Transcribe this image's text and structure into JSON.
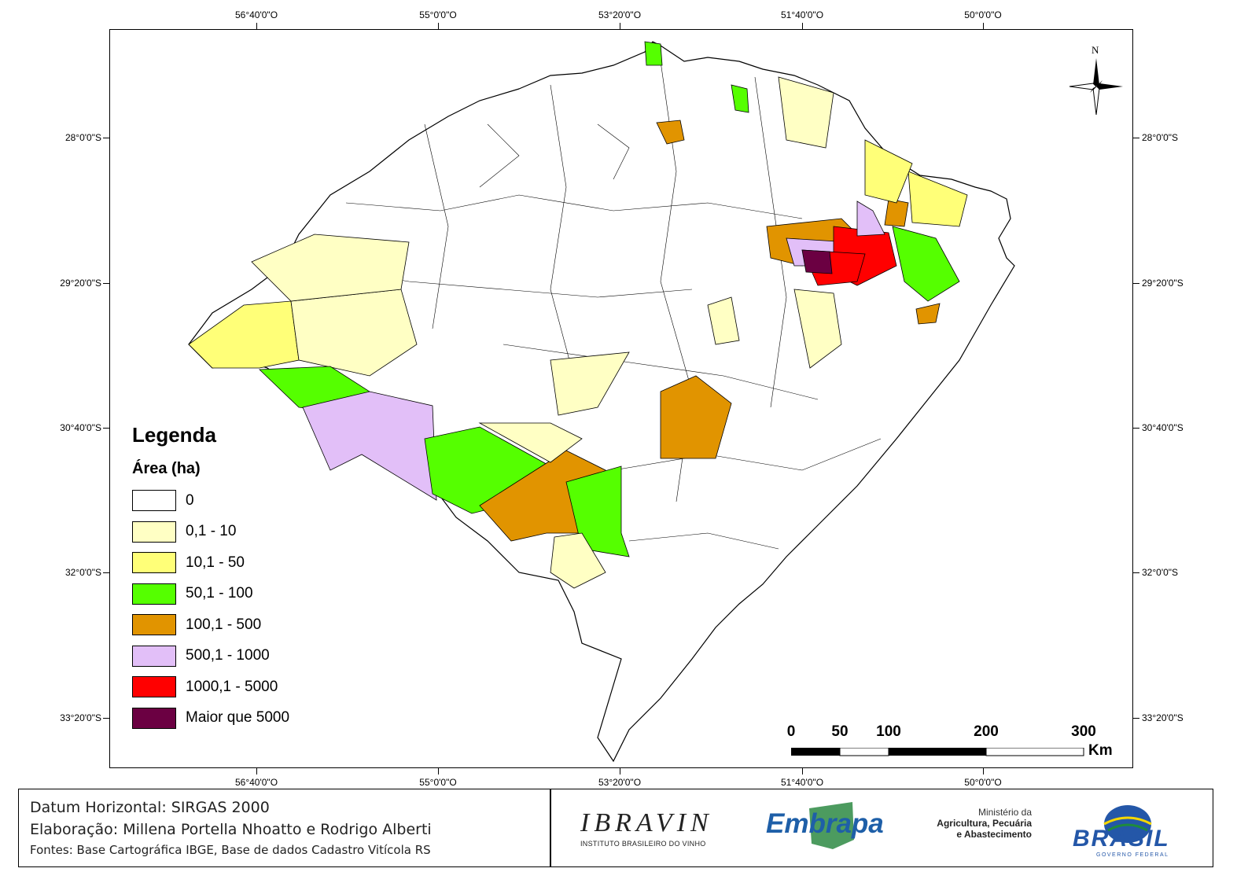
{
  "map": {
    "top_ticks": [
      "56°40'0\"O",
      "55°0'0\"O",
      "53°20'0\"O",
      "51°40'0\"O",
      "50°0'0\"O"
    ],
    "bottom_ticks": [
      "56°40'0\"O",
      "55°0'0\"O",
      "53°20'0\"O",
      "51°40'0\"O",
      "50°0'0\"O"
    ],
    "left_ticks": [
      "28°0'0\"S",
      "29°20'0\"S",
      "30°40'0\"S",
      "32°0'0\"S",
      "33°20'0\"S"
    ],
    "right_ticks": [
      "28°0'0\"S",
      "29°20'0\"S",
      "30°40'0\"S",
      "32°0'0\"S",
      "33°20'0\"S"
    ],
    "north_label": "N"
  },
  "legend": {
    "title": "Legenda",
    "subtitle": "Área (ha)",
    "items": [
      {
        "label": "0",
        "color": "#ffffff"
      },
      {
        "label": "0,1 - 10",
        "color": "#ffffc4"
      },
      {
        "label": "10,1 - 50",
        "color": "#ffff78"
      },
      {
        "label": "50,1 - 100",
        "color": "#55ff00"
      },
      {
        "label": "100,1 - 500",
        "color": "#e19400"
      },
      {
        "label": "500,1 - 1000",
        "color": "#e2bff8"
      },
      {
        "label": "1000,1 - 5000",
        "color": "#ff0000"
      },
      {
        "label": "Maior que 5000",
        "color": "#6b0042"
      }
    ]
  },
  "scalebar": {
    "labels": [
      "0",
      "50",
      "100",
      "200",
      "300"
    ],
    "unit": "Km"
  },
  "footer": {
    "datum": "Datum Horizontal: SIRGAS 2000",
    "elaboracao": "Elaboração: Millena Portella Nhoatto e Rodrigo Alberti",
    "fontes": "Fontes: Base Cartográfica IBGE, Base de dados Cadastro Vitícola RS"
  },
  "logos": {
    "ibravin_main": "IBRAVIN",
    "ibravin_sub": "INSTITUTO BRASILEIRO DO VINHO",
    "embrapa": "Embrapa",
    "mapa_line1": "Ministério da",
    "mapa_line2": "Agricultura, Pecuária",
    "mapa_line3": "e Abastecimento",
    "brasil": "BRASIL",
    "brasil_sub": "GOVERNO FEDERAL"
  }
}
